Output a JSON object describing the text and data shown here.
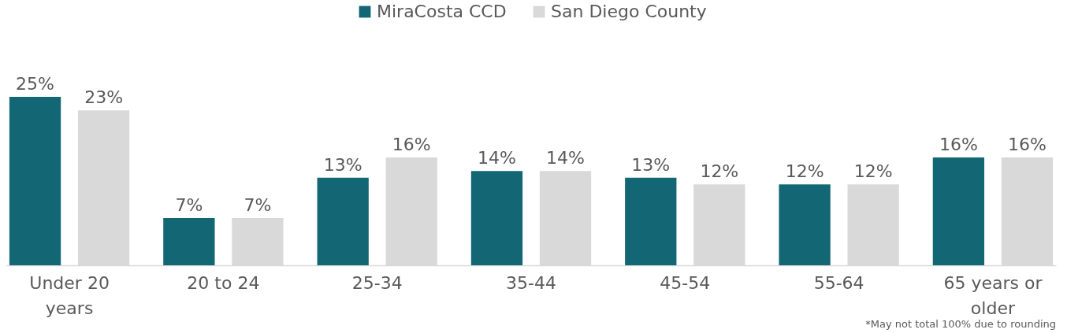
{
  "chart_data": {
    "type": "bar",
    "categories": [
      "Under 20 years",
      "20 to 24",
      "25-34",
      "35-44",
      "45-54",
      "55-64",
      "65 years or older"
    ],
    "series": [
      {
        "name": "MiraCosta CCD",
        "color": "#136673",
        "values": [
          25,
          7,
          13,
          14,
          13,
          12,
          16
        ],
        "value_labels": [
          "25%",
          "7%",
          "13%",
          "14%",
          "13%",
          "12%",
          "16%"
        ]
      },
      {
        "name": "San Diego County",
        "color": "#d9d9d9",
        "values": [
          23,
          7,
          16,
          14,
          12,
          12,
          16
        ],
        "value_labels": [
          "23%",
          "7%",
          "16%",
          "14%",
          "12%",
          "12%",
          "16%"
        ]
      }
    ],
    "legend": "top",
    "annotations": [
      "*May not total 100% due to rounding"
    ]
  }
}
